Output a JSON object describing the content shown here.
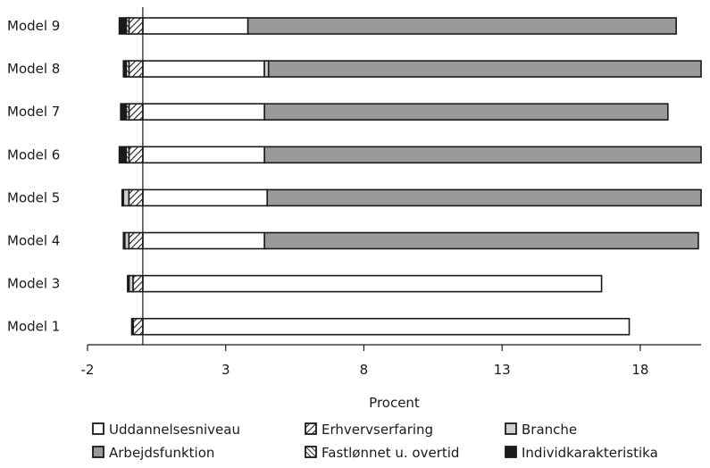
{
  "chart_data": {
    "type": "bar",
    "orientation": "horizontal",
    "stacked": true,
    "categories": [
      "Model 9",
      "Model 8",
      "Model 7",
      "Model 6",
      "Model 5",
      "Model 4",
      "Model 3",
      "Model 1"
    ],
    "series": [
      {
        "name": "Uddannelsesniveau",
        "style": "white",
        "segments": [
          [
            0,
            3.8
          ],
          [
            0,
            4.4
          ],
          [
            0,
            4.4
          ],
          [
            0,
            4.4
          ],
          [
            0,
            4.5
          ],
          [
            0,
            4.4
          ],
          [
            0,
            16.6
          ],
          [
            0,
            17.6
          ]
        ]
      },
      {
        "name": "Erhvervserfaring",
        "style": "hatch-diagonal",
        "segments": [
          [
            -0.5,
            0
          ],
          [
            -0.5,
            0
          ],
          [
            -0.5,
            0
          ],
          [
            -0.5,
            0
          ],
          [
            -0.5,
            0
          ],
          [
            -0.5,
            0
          ],
          [
            -0.35,
            0
          ],
          [
            -0.35,
            0
          ]
        ]
      },
      {
        "name": "Branche",
        "style": "light-gray",
        "segments": [
          null,
          [
            4.4,
            4.55
          ],
          null,
          null,
          [
            -0.7,
            -0.5
          ],
          [
            -0.65,
            -0.5
          ],
          [
            -0.5,
            -0.35
          ],
          null
        ]
      },
      {
        "name": "Arbejdsfunktion",
        "style": "gray",
        "segments": [
          [
            3.8,
            19.3
          ],
          [
            4.55,
            20.2
          ],
          [
            4.4,
            19.0
          ],
          [
            4.4,
            20.2
          ],
          [
            4.5,
            20.2
          ],
          [
            4.4,
            20.1
          ],
          null,
          null
        ]
      },
      {
        "name": "Fastlønnet u. overtid",
        "style": "hatch-cross",
        "segments": [
          [
            -0.6,
            -0.5
          ],
          [
            -0.6,
            -0.5
          ],
          [
            -0.6,
            -0.5
          ],
          [
            -0.6,
            -0.5
          ],
          [
            -0.75,
            -0.7
          ],
          [
            -0.7,
            -0.65
          ],
          [
            -0.55,
            -0.5
          ],
          [
            -0.4,
            -0.35
          ]
        ]
      },
      {
        "name": "Individkarakteristika",
        "style": "black",
        "segments": [
          [
            -0.85,
            -0.6
          ],
          [
            -0.7,
            -0.6
          ],
          [
            -0.8,
            -0.6
          ],
          [
            -0.85,
            -0.6
          ],
          null,
          null,
          null,
          null
        ]
      }
    ],
    "xlabel": "Procent",
    "xlim": [
      -2,
      20.2
    ],
    "xticks": [
      -2,
      3,
      8,
      13,
      18
    ],
    "legend_position": "bottom",
    "grid": false
  }
}
